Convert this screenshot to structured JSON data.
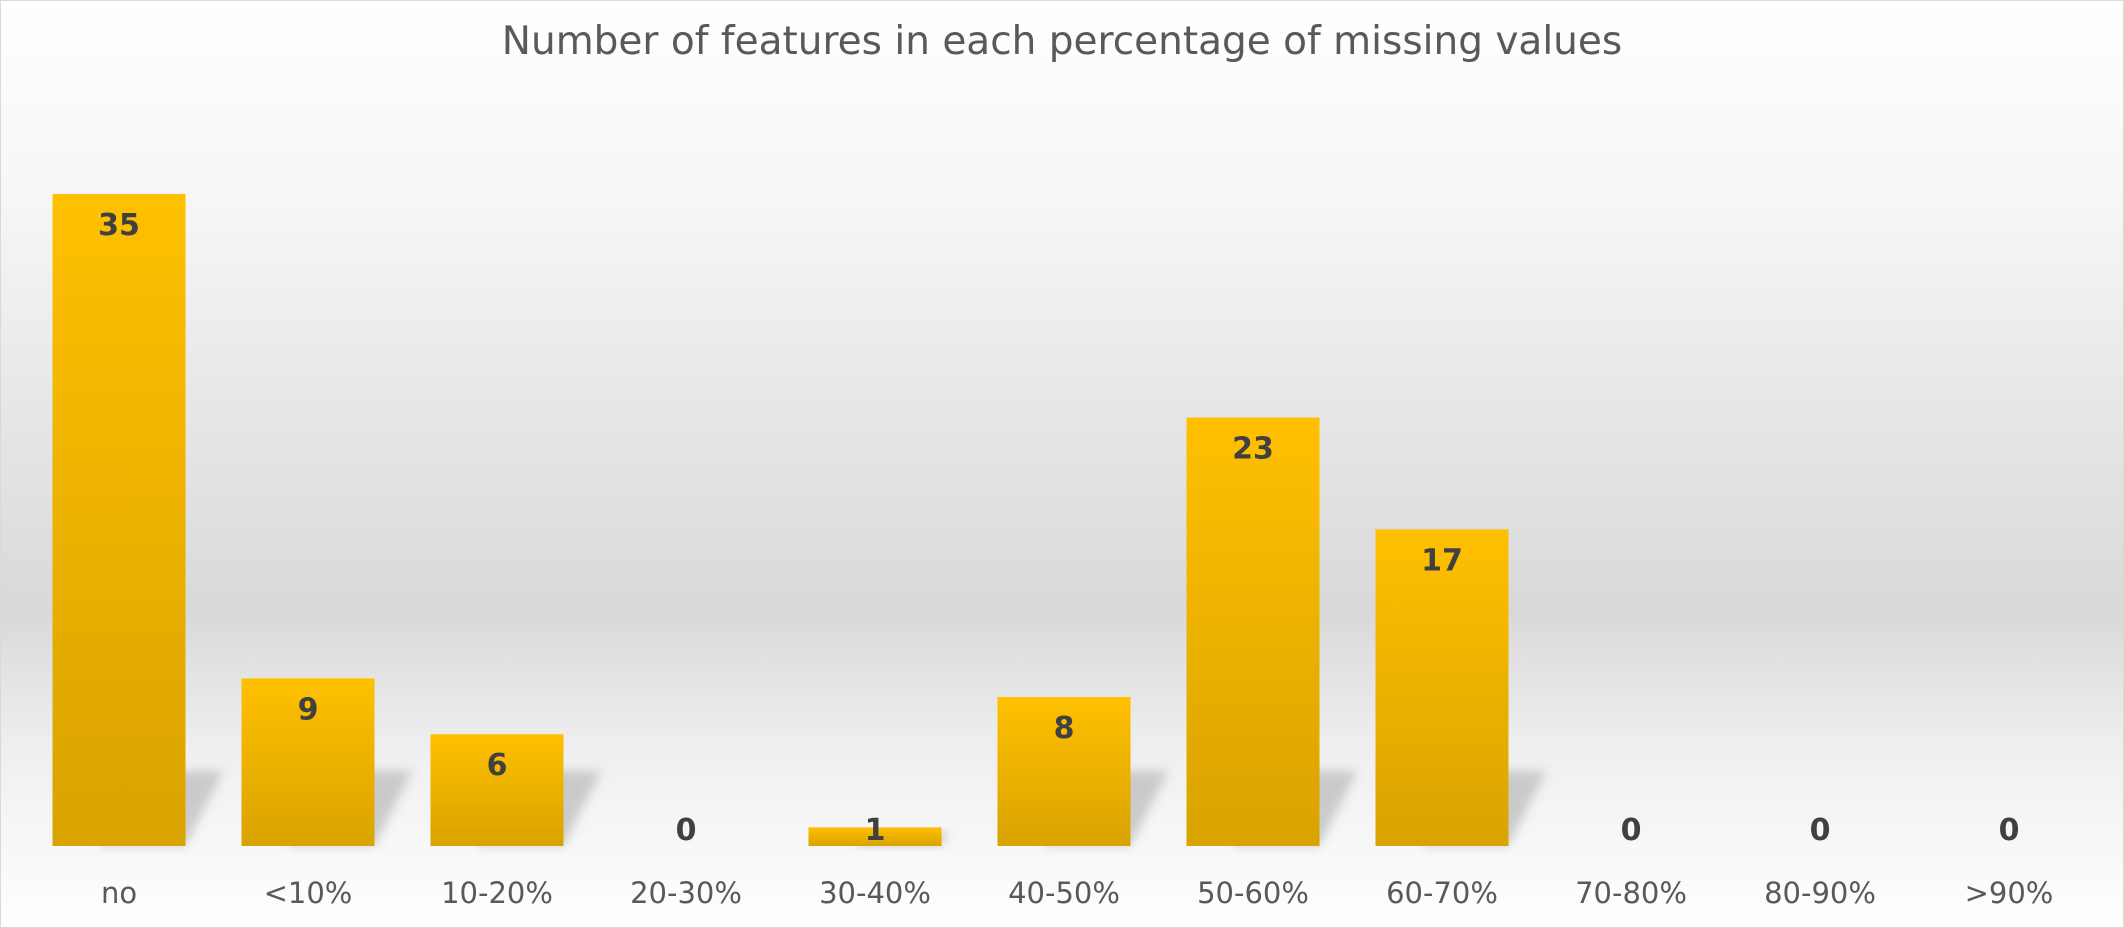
{
  "chart_data": {
    "type": "bar",
    "title": "Number of features in each percentage of missing values",
    "xlabel": "",
    "ylabel": "",
    "categories": [
      "no",
      "<10%",
      "10-20%",
      "20-30%",
      "30-40%",
      "40-50%",
      "50-60%",
      "60-70%",
      "70-80%",
      "80-90%",
      ">90%"
    ],
    "values": [
      35,
      9,
      6,
      0,
      1,
      8,
      23,
      17,
      0,
      0,
      0
    ],
    "data_labels": [
      "35",
      "9",
      "6",
      "0",
      "1",
      "8",
      "23",
      "17",
      "0",
      "0",
      "0"
    ],
    "ylim": [
      0,
      35
    ],
    "grid": false,
    "legend": "none",
    "y_axis_visible": false,
    "bar_color": "#FFC000",
    "bar_color_dark": "#D9A300",
    "shadow": true
  }
}
